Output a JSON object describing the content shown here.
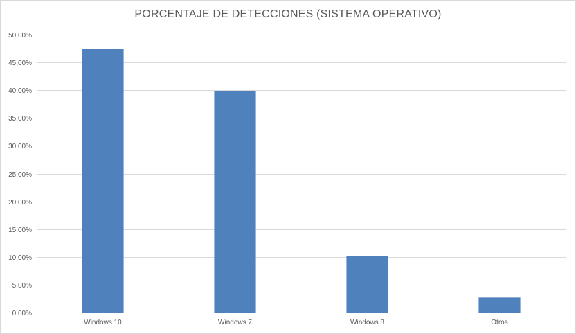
{
  "chart_data": {
    "type": "bar",
    "title": "PORCENTAJE DE DETECCIONES (SISTEMA OPERATIVO)",
    "categories": [
      "Windows 10",
      "Windows 7",
      "Windows 8",
      "Otros"
    ],
    "values": [
      47.4,
      39.8,
      10.1,
      2.7
    ],
    "ylim": [
      0,
      50
    ],
    "y_ticks": [
      0,
      5,
      10,
      15,
      20,
      25,
      30,
      35,
      40,
      45,
      50
    ],
    "y_tick_labels": [
      "0,00%",
      "5,00%",
      "10,00%",
      "15,00%",
      "20,00%",
      "25,00%",
      "30,00%",
      "35,00%",
      "40,00%",
      "45,00%",
      "50,00%"
    ],
    "grid": true,
    "legend": "none",
    "bar_color": "#4f81bd"
  }
}
